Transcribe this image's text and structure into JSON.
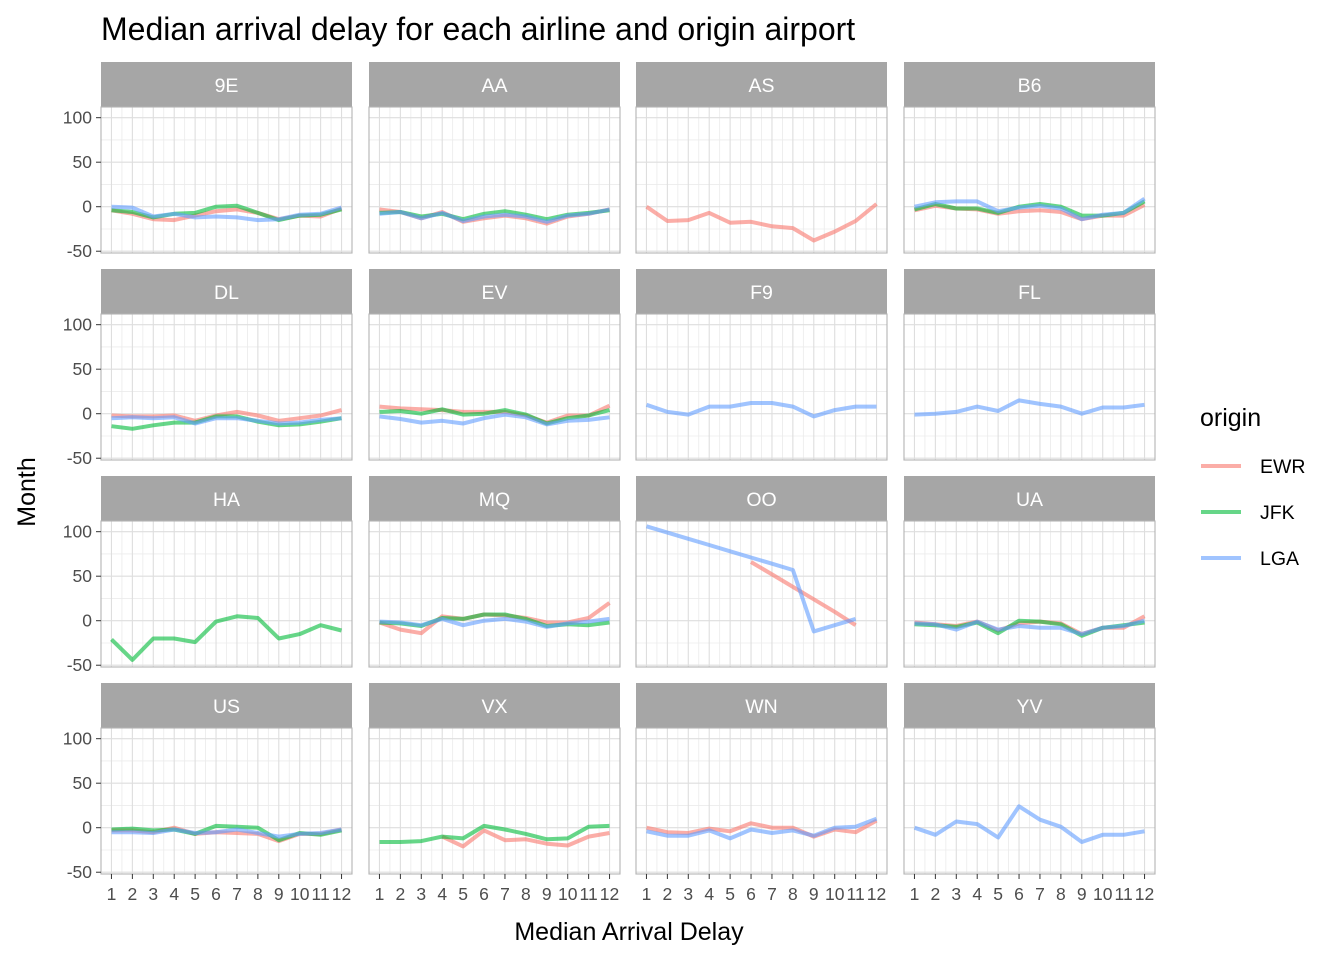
{
  "chart_data": {
    "type": "line",
    "title": "Median arrival delay for each airline and origin airport",
    "xlabel": "Median Arrival Delay",
    "ylabel": "Month",
    "x": [
      1,
      2,
      3,
      4,
      5,
      6,
      7,
      8,
      9,
      10,
      11,
      12
    ],
    "xticks": [
      "1",
      "2",
      "3",
      "4",
      "5",
      "6",
      "7",
      "8",
      "9",
      "10",
      "11",
      "12"
    ],
    "yticks": [
      -50,
      0,
      50,
      100
    ],
    "ylim": [
      -52,
      112
    ],
    "xlim": [
      0.5,
      12.5
    ],
    "grid": true,
    "facet_cols": 4,
    "legend": {
      "title": "origin",
      "placement": "right",
      "entries": [
        {
          "name": "EWR",
          "color": "#F8766D"
        },
        {
          "name": "JFK",
          "color": "#00BA38"
        },
        {
          "name": "LGA",
          "color": "#619CFF"
        }
      ]
    },
    "panels": [
      {
        "label": "9E",
        "series": [
          {
            "name": "EWR",
            "values": [
              -4,
              -8,
              -14,
              -15,
              -10,
              -5,
              -3,
              -7,
              -14,
              -10,
              -11,
              -2
            ]
          },
          {
            "name": "JFK",
            "values": [
              -4,
              -6,
              -12,
              -8,
              -7,
              0,
              1,
              -7,
              -15,
              -10,
              -9,
              -3
            ]
          },
          {
            "name": "LGA",
            "values": [
              0,
              -1,
              -11,
              -8,
              -12,
              -11,
              -12,
              -15,
              -14,
              -9,
              -8,
              -1
            ]
          }
        ]
      },
      {
        "label": "AA",
        "series": [
          {
            "name": "EWR",
            "values": [
              -3,
              -6,
              -13,
              -6,
              -17,
              -13,
              -10,
              -13,
              -19,
              -11,
              -8,
              -3
            ]
          },
          {
            "name": "JFK",
            "values": [
              -7,
              -6,
              -11,
              -8,
              -14,
              -8,
              -5,
              -9,
              -14,
              -9,
              -7,
              -4
            ]
          },
          {
            "name": "LGA",
            "values": [
              -8,
              -6,
              -13,
              -7,
              -16,
              -11,
              -9,
              -11,
              -17,
              -10,
              -8,
              -3
            ]
          }
        ]
      },
      {
        "label": "AS",
        "series": [
          {
            "name": "EWR",
            "values": [
              0,
              -16,
              -15,
              -7,
              -18,
              -17,
              -22,
              -24,
              -38,
              -28,
              -16,
              3
            ]
          }
        ]
      },
      {
        "label": "B6",
        "series": [
          {
            "name": "EWR",
            "values": [
              -4,
              1,
              -2,
              -3,
              -8,
              -5,
              -4,
              -6,
              -14,
              -10,
              -10,
              2
            ]
          },
          {
            "name": "JFK",
            "values": [
              -3,
              3,
              -2,
              -2,
              -7,
              0,
              3,
              0,
              -10,
              -10,
              -7,
              6
            ]
          },
          {
            "name": "LGA",
            "values": [
              0,
              5,
              6,
              6,
              -5,
              -1,
              1,
              -2,
              -14,
              -9,
              -7,
              9
            ]
          }
        ]
      },
      {
        "label": "DL",
        "series": [
          {
            "name": "EWR",
            "values": [
              -2,
              -3,
              -3,
              -2,
              -8,
              -2,
              2,
              -2,
              -8,
              -5,
              -2,
              4
            ]
          },
          {
            "name": "JFK",
            "values": [
              -14,
              -17,
              -13,
              -10,
              -10,
              -3,
              -3,
              -9,
              -13,
              -12,
              -9,
              -5
            ]
          },
          {
            "name": "LGA",
            "values": [
              -5,
              -4,
              -5,
              -4,
              -11,
              -5,
              -5,
              -8,
              -11,
              -10,
              -7,
              -5
            ]
          }
        ]
      },
      {
        "label": "EV",
        "series": [
          {
            "name": "EWR",
            "values": [
              8,
              6,
              5,
              4,
              2,
              2,
              2,
              -2,
              -10,
              -2,
              -2,
              9
            ]
          },
          {
            "name": "JFK",
            "values": [
              2,
              3,
              0,
              5,
              -1,
              0,
              4,
              -1,
              -11,
              -5,
              -2,
              4
            ]
          },
          {
            "name": "LGA",
            "values": [
              -3,
              -6,
              -10,
              -8,
              -11,
              -5,
              -1,
              -4,
              -12,
              -8,
              -7,
              -4
            ]
          }
        ]
      },
      {
        "label": "F9",
        "series": [
          {
            "name": "LGA",
            "values": [
              10,
              2,
              -1,
              8,
              8,
              12,
              12,
              8,
              -3,
              4,
              8,
              8
            ]
          }
        ]
      },
      {
        "label": "FL",
        "series": [
          {
            "name": "LGA",
            "values": [
              -1,
              0,
              2,
              8,
              3,
              15,
              11,
              8,
              0,
              7,
              7,
              10
            ]
          }
        ]
      },
      {
        "label": "HA",
        "series": [
          {
            "name": "JFK",
            "values": [
              -21,
              -44,
              -20,
              -20,
              -24,
              -1,
              5,
              3,
              -20,
              -15,
              -5,
              -11
            ]
          }
        ]
      },
      {
        "label": "MQ",
        "series": [
          {
            "name": "EWR",
            "values": [
              -2,
              -10,
              -14,
              5,
              2,
              7,
              6,
              3,
              -2,
              -2,
              3,
              20
            ]
          },
          {
            "name": "JFK",
            "values": [
              -2,
              -3,
              -6,
              3,
              2,
              7,
              7,
              2,
              -6,
              -4,
              -5,
              -2
            ]
          },
          {
            "name": "LGA",
            "values": [
              -1,
              -2,
              -5,
              2,
              -5,
              0,
              2,
              -1,
              -7,
              -3,
              -1,
              2
            ]
          }
        ]
      },
      {
        "label": "OO",
        "series": [
          {
            "name": "EWR",
            "values": [
              null,
              null,
              null,
              null,
              null,
              66,
              52,
              38,
              24,
              10,
              -5,
              null
            ]
          },
          {
            "name": "LGA",
            "values": [
              106,
              99,
              92,
              85,
              78,
              71,
              64,
              57,
              -12,
              -5,
              2,
              null
            ]
          }
        ]
      },
      {
        "label": "UA",
        "series": [
          {
            "name": "EWR",
            "values": [
              -2,
              -4,
              -6,
              -1,
              -11,
              -3,
              -1,
              -3,
              -15,
              -8,
              -8,
              5
            ]
          },
          {
            "name": "JFK",
            "values": [
              -4,
              -5,
              -7,
              -2,
              -14,
              0,
              -1,
              -4,
              -17,
              -8,
              -5,
              -2
            ]
          },
          {
            "name": "LGA",
            "values": [
              -3,
              -4,
              -10,
              -1,
              -10,
              -6,
              -8,
              -8,
              -15,
              -8,
              -6,
              0
            ]
          }
        ]
      },
      {
        "label": "US",
        "series": [
          {
            "name": "EWR",
            "values": [
              -3,
              -3,
              -5,
              0,
              -7,
              -5,
              -6,
              -7,
              -15,
              -7,
              -7,
              -2
            ]
          },
          {
            "name": "JFK",
            "values": [
              -2,
              -1,
              -3,
              -2,
              -7,
              2,
              1,
              0,
              -14,
              -6,
              -8,
              -3
            ]
          },
          {
            "name": "LGA",
            "values": [
              -5,
              -5,
              -6,
              -2,
              -6,
              -5,
              -2,
              -6,
              -10,
              -7,
              -6,
              -2
            ]
          }
        ]
      },
      {
        "label": "VX",
        "series": [
          {
            "name": "EWR",
            "values": [
              null,
              null,
              null,
              -10,
              -21,
              -3,
              -14,
              -13,
              -18,
              -20,
              -10,
              -6
            ]
          },
          {
            "name": "JFK",
            "values": [
              -16,
              -16,
              -15,
              -10,
              -12,
              2,
              -2,
              -7,
              -13,
              -12,
              1,
              2
            ]
          }
        ]
      },
      {
        "label": "WN",
        "series": [
          {
            "name": "EWR",
            "values": [
              0,
              -5,
              -6,
              -1,
              -4,
              5,
              0,
              0,
              -10,
              -2,
              -5,
              8
            ]
          },
          {
            "name": "LGA",
            "values": [
              -4,
              -9,
              -9,
              -3,
              -12,
              -2,
              -6,
              -3,
              -9,
              0,
              1,
              10
            ]
          }
        ]
      },
      {
        "label": "YV",
        "series": [
          {
            "name": "LGA",
            "values": [
              0,
              -8,
              7,
              4,
              -11,
              24,
              9,
              1,
              -16,
              -8,
              -8,
              -4
            ]
          }
        ]
      }
    ]
  }
}
